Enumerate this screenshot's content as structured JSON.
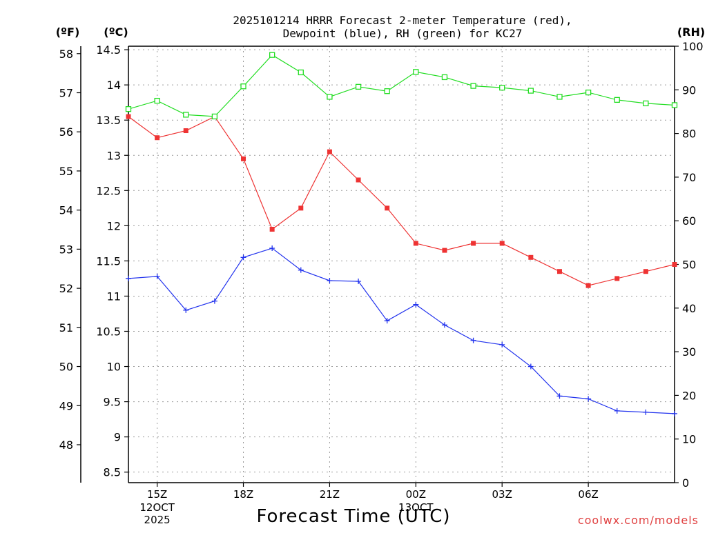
{
  "chart_data": {
    "type": "line",
    "title_lines": [
      "2025101214 HRRR Forecast 2-meter Temperature (red),",
      "Dewpoint (blue), RH (green) for KC27"
    ],
    "xlabel": "Forecast Time (UTC)",
    "watermark": "coolwx.com/models",
    "grid": true,
    "hours": [
      14,
      15,
      16,
      17,
      18,
      19,
      20,
      21,
      22,
      23,
      24,
      25,
      26,
      27,
      28,
      29,
      30,
      31,
      32,
      33
    ],
    "x_range_hours": [
      14,
      33
    ],
    "x_ticks": [
      {
        "hour": 15,
        "label": "15Z",
        "sub": [
          "12OCT",
          "2025"
        ]
      },
      {
        "hour": 18,
        "label": "18Z",
        "sub": []
      },
      {
        "hour": 21,
        "label": "21Z",
        "sub": []
      },
      {
        "hour": 24,
        "label": "00Z",
        "sub": [
          "13OCT"
        ]
      },
      {
        "hour": 27,
        "label": "03Z",
        "sub": []
      },
      {
        "hour": 30,
        "label": "06Z",
        "sub": []
      }
    ],
    "axes": {
      "celsius": {
        "unit_label": "(ºC)",
        "range": [
          8.35,
          14.55
        ],
        "ticks": [
          "8.5",
          "9",
          "9.5",
          "10",
          "10.5",
          "11",
          "11.5",
          "12",
          "12.5",
          "13",
          "13.5",
          "14",
          "14.5"
        ]
      },
      "fahrenheit": {
        "unit_label": "(ºF)",
        "ticks": [
          "48",
          "49",
          "50",
          "51",
          "52",
          "53",
          "54",
          "55",
          "56",
          "57",
          "58"
        ]
      },
      "rh": {
        "unit_label": "(RH)",
        "range": [
          0,
          100
        ],
        "ticks": [
          "0",
          "10",
          "20",
          "30",
          "40",
          "50",
          "60",
          "70",
          "80",
          "90",
          "100"
        ]
      }
    },
    "series": [
      {
        "name": "Temperature",
        "axis": "celsius",
        "color": "#ee3333",
        "marker": "filled-square",
        "values": [
          13.55,
          13.25,
          13.35,
          13.55,
          12.95,
          11.95,
          12.25,
          13.05,
          12.65,
          12.25,
          11.75,
          11.65,
          11.75,
          11.75,
          11.55,
          11.35,
          11.15,
          11.25,
          11.35,
          11.45
        ]
      },
      {
        "name": "Dewpoint",
        "axis": "celsius",
        "color": "#2233ee",
        "marker": "plus",
        "values": [
          11.25,
          11.28,
          10.8,
          10.93,
          11.55,
          11.68,
          11.37,
          11.22,
          11.21,
          10.65,
          10.88,
          10.59,
          10.37,
          10.31,
          10.0,
          9.58,
          9.54,
          9.37,
          9.35,
          9.33
        ]
      },
      {
        "name": "RH",
        "axis": "rh",
        "color": "#22dd22",
        "marker": "open-square",
        "values": [
          85.6,
          87.5,
          84.3,
          83.9,
          90.8,
          98.0,
          94.0,
          88.4,
          90.7,
          89.7,
          94.1,
          92.9,
          90.9,
          90.5,
          89.8,
          88.4,
          89.4,
          87.7,
          86.9,
          86.5
        ]
      }
    ]
  }
}
